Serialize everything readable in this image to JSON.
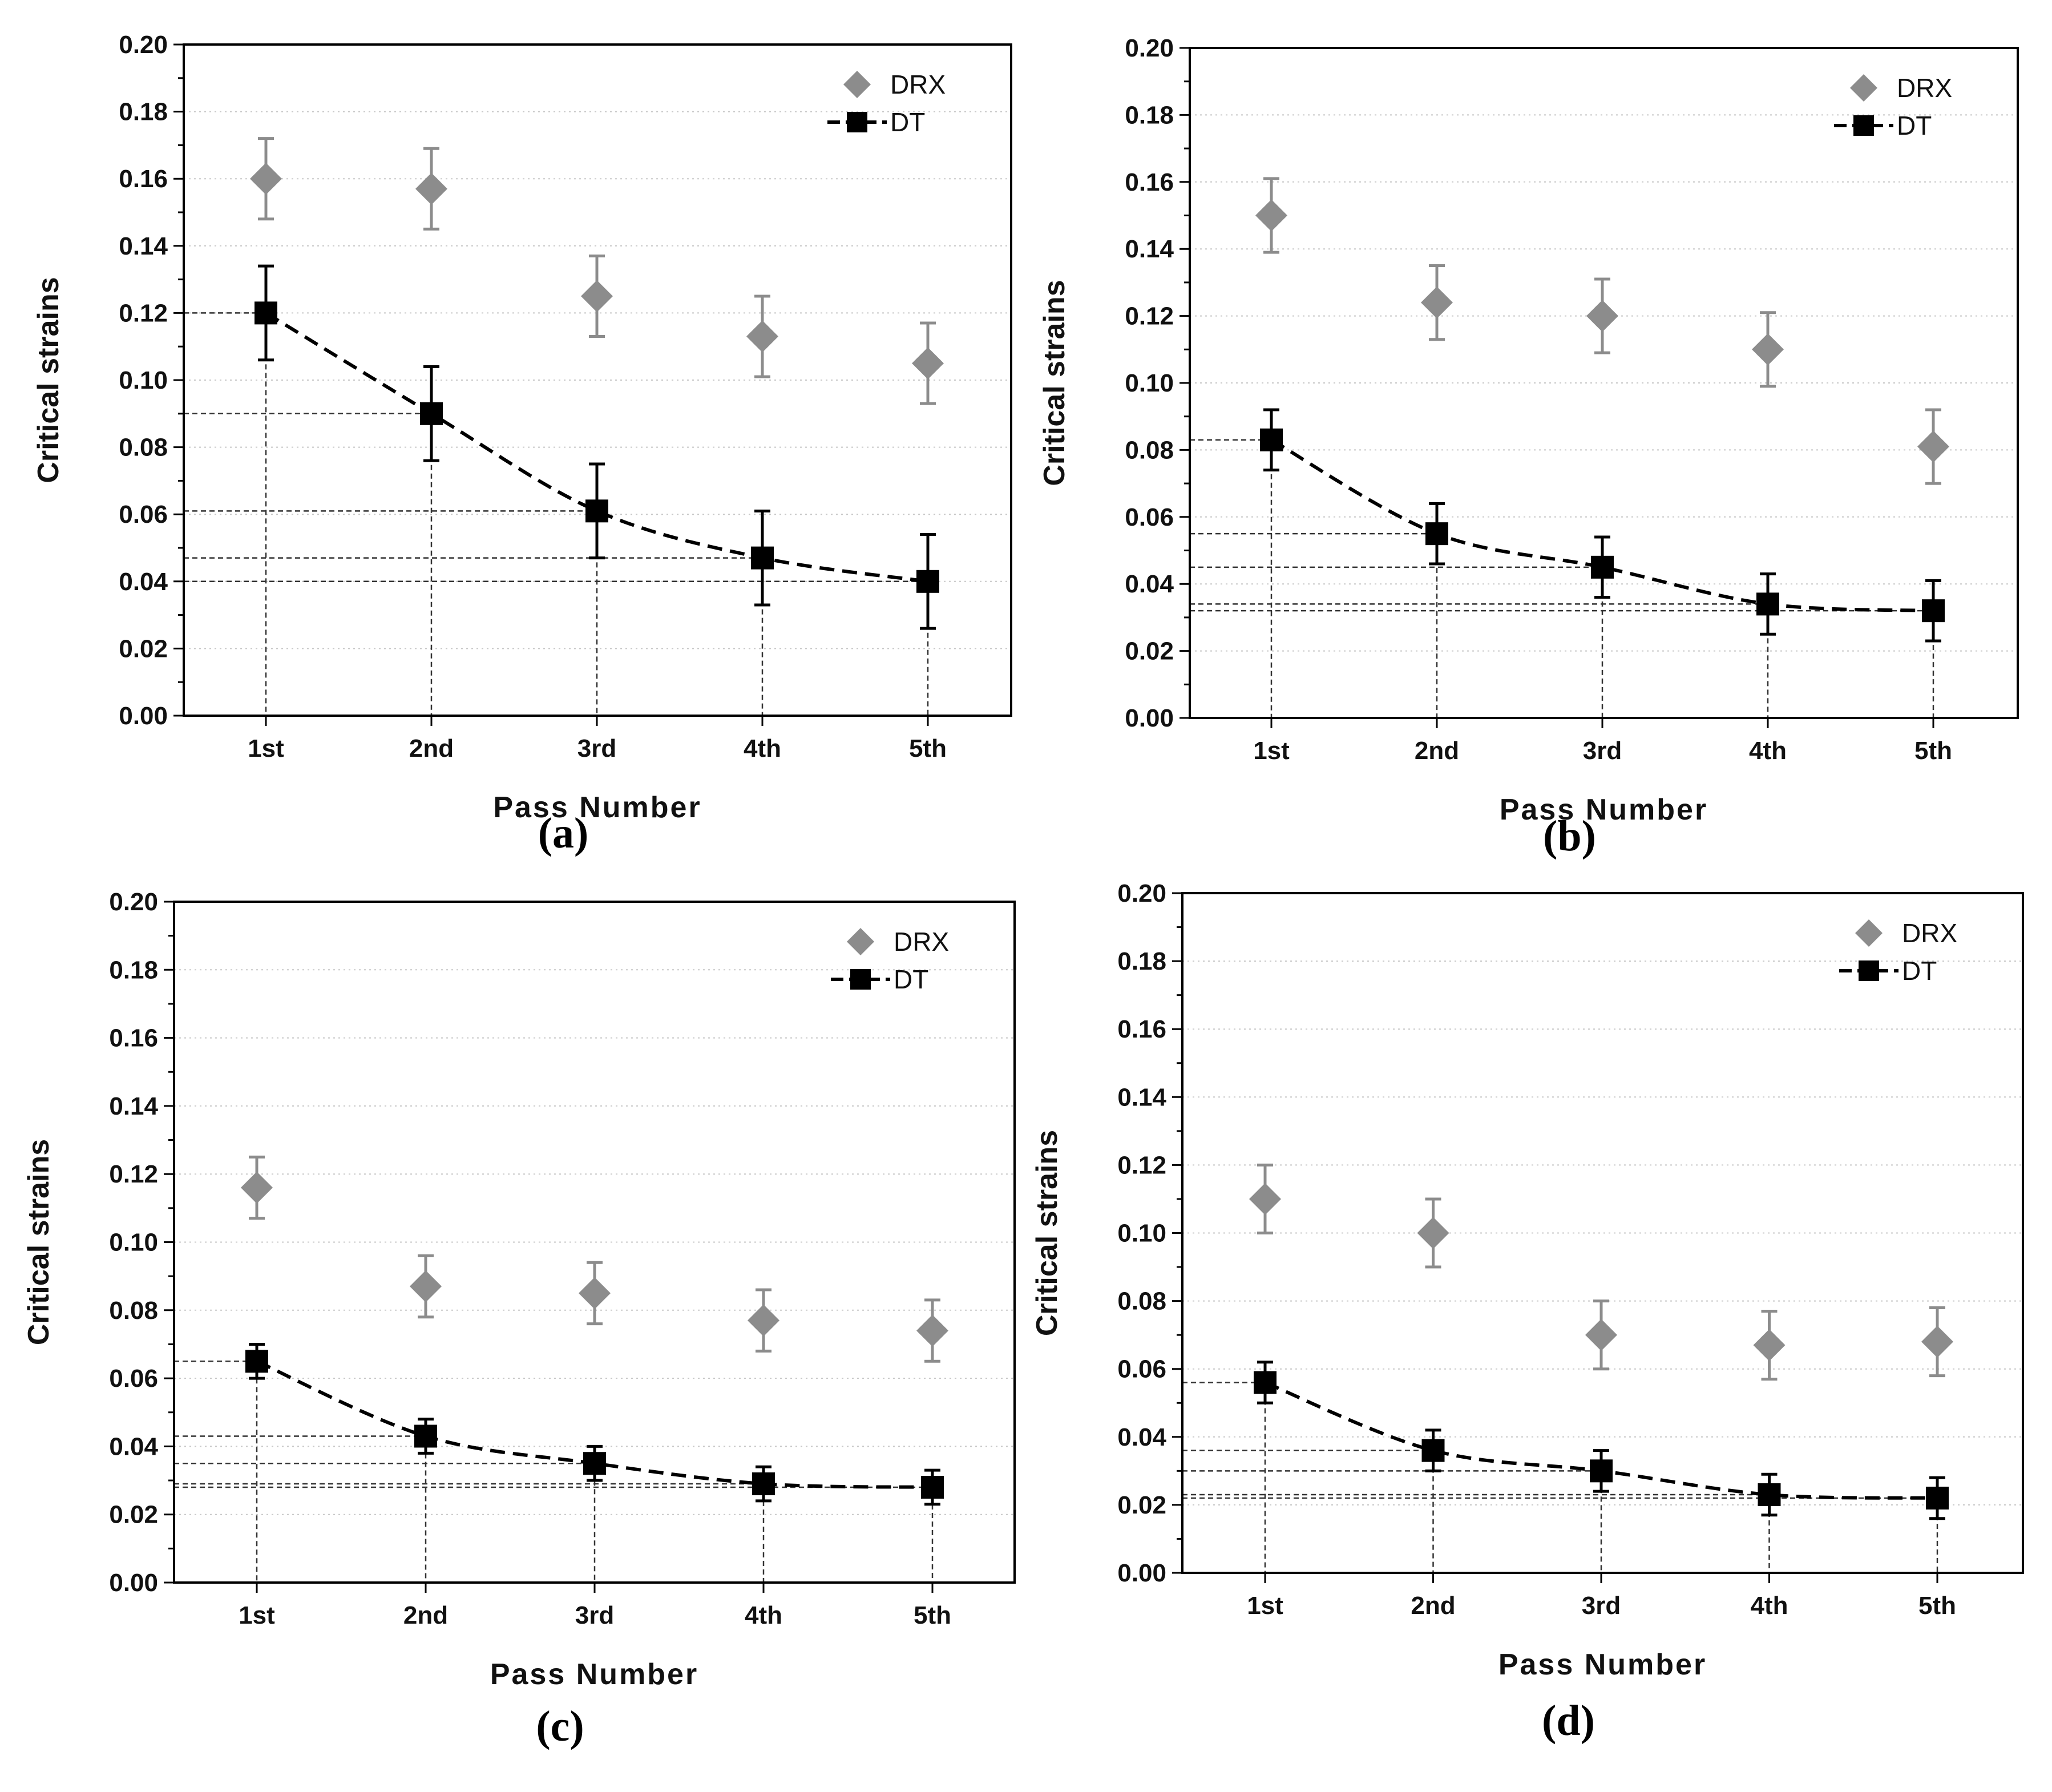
{
  "legend": {
    "drx": "DRX",
    "dt": "DT"
  },
  "colors": {
    "drx": "#8c8c8c",
    "dt": "#000000",
    "grid": "#c8c8c8",
    "guide": "#333333"
  },
  "chart_data": [
    {
      "label": "(a)",
      "type": "scatter",
      "xlabel": "Pass Number",
      "ylabel": "Critical strains",
      "categories": [
        "1st",
        "2nd",
        "3rd",
        "4th",
        "5th"
      ],
      "ylim": [
        0,
        0.2
      ],
      "yticks": [
        "0.00",
        "0.02",
        "0.04",
        "0.06",
        "0.08",
        "0.10",
        "0.12",
        "0.14",
        "0.16",
        "0.18",
        "0.20"
      ],
      "grid": true,
      "legend_position": "top-right",
      "series": [
        {
          "name": "DRX",
          "marker": "diamond",
          "values": [
            0.16,
            0.157,
            0.125,
            0.113,
            0.105
          ],
          "errors": [
            0.012,
            0.012,
            0.012,
            0.012,
            0.012
          ]
        },
        {
          "name": "DT",
          "marker": "square",
          "line": "dashed",
          "values": [
            0.12,
            0.09,
            0.061,
            0.047,
            0.04
          ],
          "errors": [
            0.014,
            0.014,
            0.014,
            0.014,
            0.014
          ]
        }
      ]
    },
    {
      "label": "(b)",
      "type": "scatter",
      "xlabel": "Pass Number",
      "ylabel": "Critical strains",
      "categories": [
        "1st",
        "2nd",
        "3rd",
        "4th",
        "5th"
      ],
      "ylim": [
        0,
        0.2
      ],
      "yticks": [
        "0.00",
        "0.02",
        "0.04",
        "0.06",
        "0.08",
        "0.10",
        "0.12",
        "0.14",
        "0.16",
        "0.18",
        "0.20"
      ],
      "grid": true,
      "legend_position": "top-right",
      "series": [
        {
          "name": "DRX",
          "marker": "diamond",
          "values": [
            0.15,
            0.124,
            0.12,
            0.11,
            0.081
          ],
          "errors": [
            0.011,
            0.011,
            0.011,
            0.011,
            0.011
          ]
        },
        {
          "name": "DT",
          "marker": "square",
          "line": "dashed",
          "values": [
            0.083,
            0.055,
            0.045,
            0.034,
            0.032
          ],
          "errors": [
            0.009,
            0.009,
            0.009,
            0.009,
            0.009
          ]
        }
      ]
    },
    {
      "label": "(c)",
      "type": "scatter",
      "xlabel": "Pass Number",
      "ylabel": "Critical strains",
      "categories": [
        "1st",
        "2nd",
        "3rd",
        "4th",
        "5th"
      ],
      "ylim": [
        0,
        0.2
      ],
      "yticks": [
        "0.00",
        "0.02",
        "0.04",
        "0.06",
        "0.08",
        "0.10",
        "0.12",
        "0.14",
        "0.16",
        "0.18",
        "0.20"
      ],
      "grid": true,
      "legend_position": "top-right",
      "series": [
        {
          "name": "DRX",
          "marker": "diamond",
          "values": [
            0.116,
            0.087,
            0.085,
            0.077,
            0.074
          ],
          "errors": [
            0.009,
            0.009,
            0.009,
            0.009,
            0.009
          ]
        },
        {
          "name": "DT",
          "marker": "square",
          "line": "dashed",
          "values": [
            0.065,
            0.043,
            0.035,
            0.029,
            0.028
          ],
          "errors": [
            0.005,
            0.005,
            0.005,
            0.005,
            0.005
          ]
        }
      ]
    },
    {
      "label": "(d)",
      "type": "scatter",
      "xlabel": "Pass Number",
      "ylabel": "Critical strains",
      "categories": [
        "1st",
        "2nd",
        "3rd",
        "4th",
        "5th"
      ],
      "ylim": [
        0,
        0.2
      ],
      "yticks": [
        "0.00",
        "0.02",
        "0.04",
        "0.06",
        "0.08",
        "0.10",
        "0.12",
        "0.14",
        "0.16",
        "0.18",
        "0.20"
      ],
      "grid": true,
      "legend_position": "top-right",
      "series": [
        {
          "name": "DRX",
          "marker": "diamond",
          "values": [
            0.11,
            0.1,
            0.07,
            0.067,
            0.068
          ],
          "errors": [
            0.01,
            0.01,
            0.01,
            0.01,
            0.01
          ]
        },
        {
          "name": "DT",
          "marker": "square",
          "line": "dashed",
          "values": [
            0.056,
            0.036,
            0.03,
            0.023,
            0.022
          ],
          "errors": [
            0.006,
            0.006,
            0.006,
            0.006,
            0.006
          ]
        }
      ]
    }
  ]
}
